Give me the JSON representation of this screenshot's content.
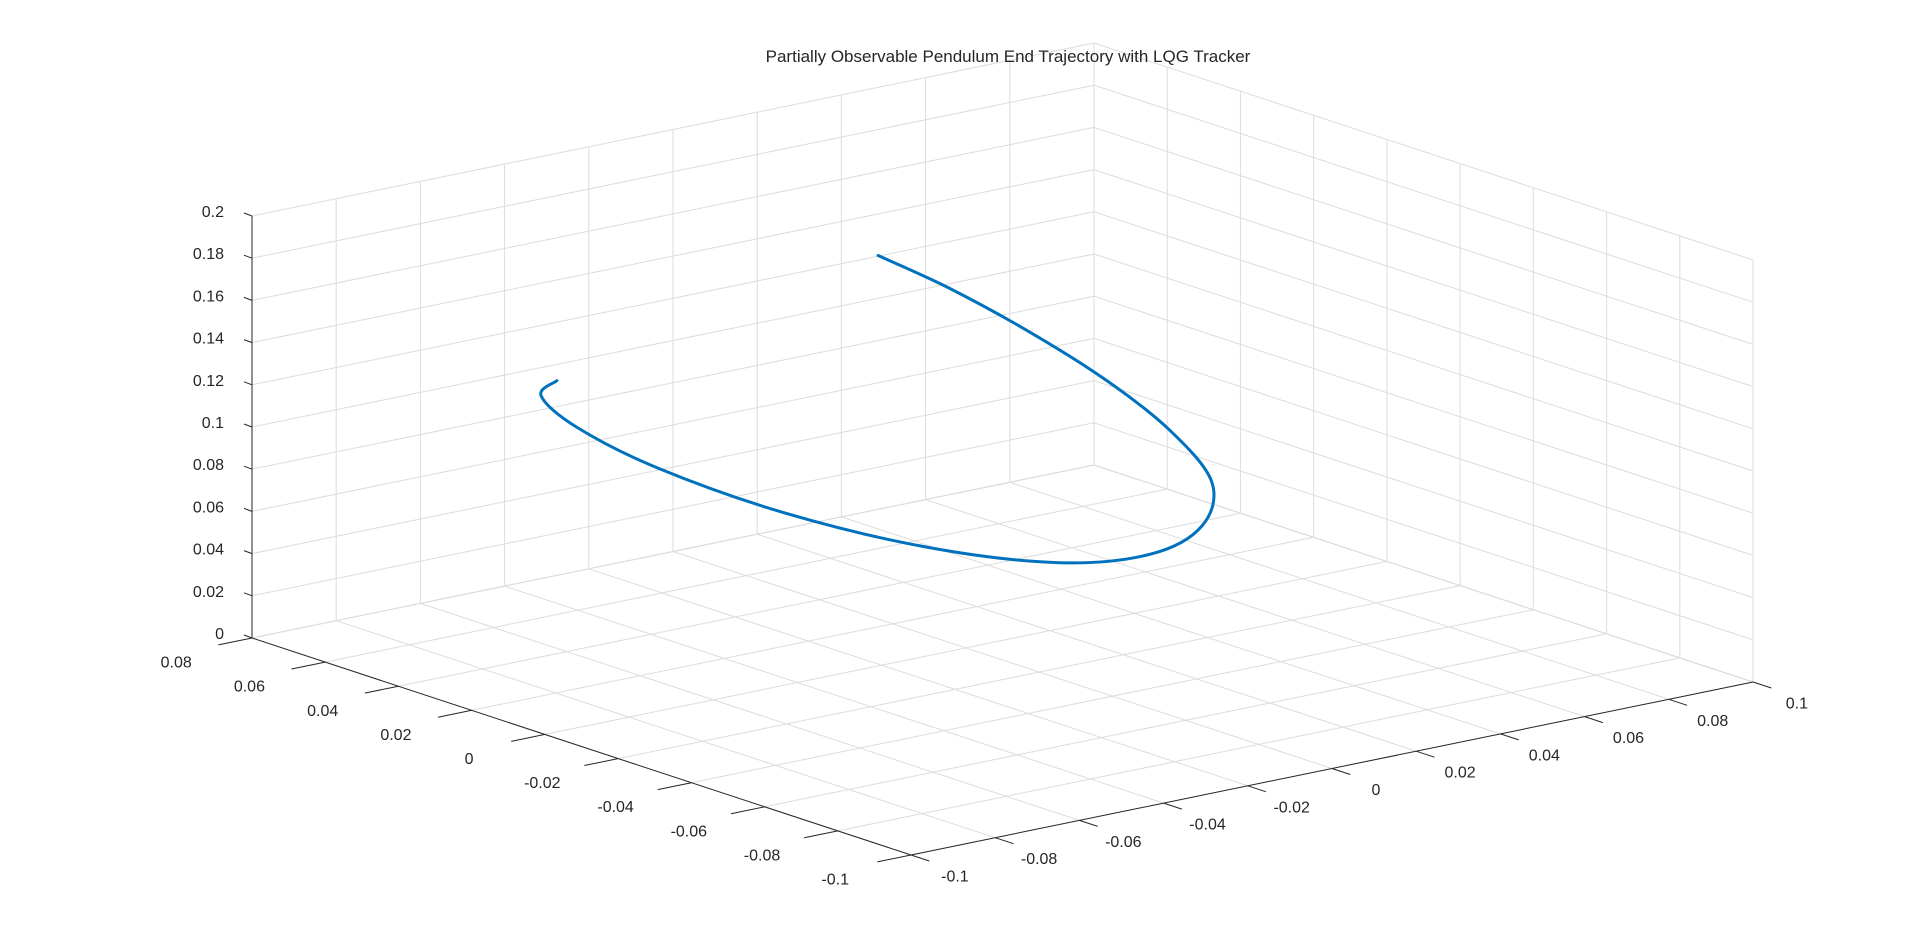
{
  "chart_data": {
    "type": "line3d",
    "title": "Partially Observable Pendulum End Trajectory with LQG Tracker",
    "xlim": [
      -0.1,
      0.1
    ],
    "ylim": [
      -0.1,
      0.08
    ],
    "zlim": [
      0,
      0.2
    ],
    "x_ticks": [
      "-0.1",
      "-0.08",
      "-0.06",
      "-0.04",
      "-0.02",
      "0",
      "0.02",
      "0.04",
      "0.06",
      "0.08",
      "0.1"
    ],
    "y_ticks": [
      "-0.1",
      "-0.08",
      "-0.06",
      "-0.04",
      "-0.02",
      "0",
      "0.02",
      "0.04",
      "0.06",
      "0.08"
    ],
    "z_ticks": [
      "0",
      "0.02",
      "0.04",
      "0.06",
      "0.08",
      "0.1",
      "0.12",
      "0.14",
      "0.16",
      "0.18",
      "0.2"
    ],
    "grid": true,
    "series": [
      {
        "color": "#0072BD",
        "points": [
          [
            0.0415,
            0.0717,
            0.128
          ],
          [
            0.046,
            0.058,
            0.119
          ],
          [
            0.048,
            0.039,
            0.109
          ],
          [
            0.046,
            0.015,
            0.1
          ],
          [
            0.04,
            -0.01,
            0.092
          ],
          [
            0.028,
            -0.035,
            0.087
          ],
          [
            0.01,
            -0.053,
            0.084
          ],
          [
            -0.01,
            -0.062,
            0.084
          ],
          [
            -0.03,
            -0.06,
            0.087
          ],
          [
            -0.049,
            -0.046,
            0.094
          ],
          [
            -0.064,
            -0.024,
            0.104
          ],
          [
            -0.073,
            0.0,
            0.115
          ],
          [
            -0.076,
            0.019,
            0.125
          ],
          [
            -0.0748,
            0.03,
            0.133
          ],
          [
            -0.0695,
            0.0318,
            0.137
          ]
        ]
      }
    ]
  }
}
